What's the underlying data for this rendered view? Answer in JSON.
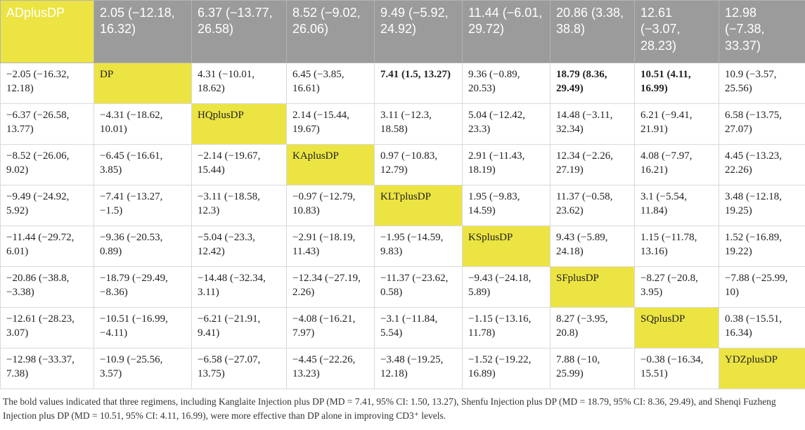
{
  "table": {
    "rows": [
      [
        {
          "text": "ADplusDP",
          "diag": true
        },
        {
          "text": "2.05 (−12.18, 16.32)"
        },
        {
          "text": "6.37 (−13.77, 26.58)"
        },
        {
          "text": "8.52 (−9.02, 26.06)"
        },
        {
          "text": "9.49 (−5.92, 24.92)"
        },
        {
          "text": "11.44 (−6.01, 29.72)"
        },
        {
          "text": "20.86 (3.38, 38.8)"
        },
        {
          "text": "12.61 (−3.07, 28.23)"
        },
        {
          "text": "12.98 (−7.38, 33.37)"
        }
      ],
      [
        {
          "text": "−2.05 (−16.32, 12.18)"
        },
        {
          "text": "DP",
          "diag": true
        },
        {
          "text": "4.31 (−10.01, 18.62)"
        },
        {
          "text": "6.45 (−3.85, 16.61)"
        },
        {
          "text": "7.41 (1.5, 13.27)",
          "bold": true
        },
        {
          "text": "9.36 (−0.89, 20.53)"
        },
        {
          "text": "18.79 (8.36, 29.49)",
          "bold": true
        },
        {
          "text": "10.51 (4.11, 16.99)",
          "bold": true
        },
        {
          "text": "10.9 (−3.57, 25.56)"
        }
      ],
      [
        {
          "text": "−6.37 (−26.58, 13.77)"
        },
        {
          "text": "−4.31 (−18.62, 10.01)"
        },
        {
          "text": "HQplusDP",
          "diag": true
        },
        {
          "text": "2.14 (−15.44, 19.67)"
        },
        {
          "text": "3.11 (−12.3, 18.58)"
        },
        {
          "text": "5.04 (−12.42, 23.3)"
        },
        {
          "text": "14.48 (−3.11, 32.34)"
        },
        {
          "text": "6.21 (−9.41, 21.91)"
        },
        {
          "text": "6.58 (−13.75, 27.07)"
        }
      ],
      [
        {
          "text": "−8.52 (−26.06, 9.02)"
        },
        {
          "text": "−6.45 (−16.61, 3.85)"
        },
        {
          "text": "−2.14 (−19.67, 15.44)"
        },
        {
          "text": "KAplusDP",
          "diag": true
        },
        {
          "text": "0.97 (−10.83, 12.79)"
        },
        {
          "text": "2.91 (−11.43, 18.19)"
        },
        {
          "text": "12.34 (−2.26, 27.19)"
        },
        {
          "text": "4.08 (−7.97, 16.21)"
        },
        {
          "text": "4.45 (−13.23, 22.26)"
        }
      ],
      [
        {
          "text": "−9.49 (−24.92, 5.92)"
        },
        {
          "text": "−7.41 (−13.27, −1.5)"
        },
        {
          "text": "−3.11 (−18.58, 12.3)"
        },
        {
          "text": "−0.97 (−12.79, 10.83)"
        },
        {
          "text": "KLTplusDP",
          "diag": true
        },
        {
          "text": "1.95 (−9.83, 14.59)"
        },
        {
          "text": "11.37 (−0.58, 23.62)"
        },
        {
          "text": "3.1 (−5.54, 11.84)"
        },
        {
          "text": "3.48 (−12.18, 19.25)"
        }
      ],
      [
        {
          "text": "−11.44 (−29.72, 6.01)"
        },
        {
          "text": "−9.36 (−20.53, 0.89)"
        },
        {
          "text": "−5.04 (−23.3, 12.42)"
        },
        {
          "text": "−2.91 (−18.19, 11.43)"
        },
        {
          "text": "−1.95 (−14.59, 9.83)"
        },
        {
          "text": "KSplusDP",
          "diag": true
        },
        {
          "text": "9.43 (−5.89, 24.18)"
        },
        {
          "text": "1.15 (−11.78, 13.16)"
        },
        {
          "text": "1.52 (−16.89, 19.22)"
        }
      ],
      [
        {
          "text": "−20.86 (−38.8, −3.38)"
        },
        {
          "text": "−18.79 (−29.49, −8.36)"
        },
        {
          "text": "−14.48 (−32.34, 3.11)"
        },
        {
          "text": "−12.34 (−27.19, 2.26)"
        },
        {
          "text": "−11.37 (−23.62, 0.58)"
        },
        {
          "text": "−9.43 (−24.18, 5.89)"
        },
        {
          "text": "SFplusDP",
          "diag": true
        },
        {
          "text": "−8.27 (−20.8, 3.95)"
        },
        {
          "text": "−7.88 (−25.99, 10)"
        }
      ],
      [
        {
          "text": "−12.61 (−28.23, 3.07)"
        },
        {
          "text": "−10.51 (−16.99, −4.11)"
        },
        {
          "text": "−6.21 (−21.91, 9.41)"
        },
        {
          "text": "−4.08 (−16.21, 7.97)"
        },
        {
          "text": "−3.1 (−11.84, 5.54)"
        },
        {
          "text": "−1.15 (−13.16, 11.78)"
        },
        {
          "text": "8.27 (−3.95, 20.8)"
        },
        {
          "text": "SQplusDP",
          "diag": true
        },
        {
          "text": "0.38 (−15.51, 16.34)"
        }
      ],
      [
        {
          "text": "−12.98 (−33.37, 7.38)"
        },
        {
          "text": "−10.9 (−25.56, 3.57)"
        },
        {
          "text": "−6.58 (−27.07, 13.75)"
        },
        {
          "text": "−4.45 (−22.26, 13.23)"
        },
        {
          "text": "−3.48 (−19.25, 12.18)"
        },
        {
          "text": "−1.52 (−19.22, 16.89)"
        },
        {
          "text": "7.88 (−10, 25.99)"
        },
        {
          "text": "−0.38 (−16.34, 15.51)"
        },
        {
          "text": "YDZplusDP",
          "diag": true
        }
      ]
    ]
  },
  "footnote": "The bold values indicated that three regimens, including Kanglaite Injection plus DP (MD = 7.41, 95% CI: 1.50, 13.27), Shenfu Injection plus DP (MD = 18.79, 95% CI: 8.36, 29.49), and Shenqi Fuzheng Injection plus DP (MD = 10.51, 95% CI: 4.11, 16.99), were more effective than DP alone in improving CD3⁺ levels.",
  "colors": {
    "header_bg": "#9b9b9b",
    "diagonal_bg": "#ece442"
  }
}
